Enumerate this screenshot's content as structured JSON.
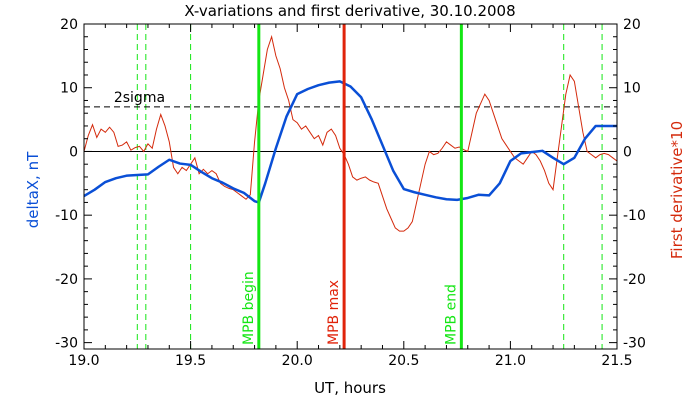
{
  "chart_data": {
    "type": "line",
    "title": "X-variations and first derivative, 30.10.2008",
    "xlabel": "UT, hours",
    "ylabel": "deltaX, nT",
    "ylabel_right": "First derivative*10",
    "xlim": [
      19.0,
      21.5
    ],
    "ylim": [
      -31,
      20
    ],
    "grid": false,
    "colors": {
      "deltaX": "#0a4fd6",
      "derivative": "#d42a0c",
      "green_marker": "#14e614",
      "red_marker": "#e0230a",
      "dashed_green": "#14e614",
      "sigma_line": "#000000"
    },
    "x_ticks": [
      {
        "value": 19.0,
        "label": "19.0"
      },
      {
        "value": 19.5,
        "label": "19.5"
      },
      {
        "value": 20.0,
        "label": "20.0"
      },
      {
        "value": 20.5,
        "label": "20.5"
      },
      {
        "value": 21.0,
        "label": "21.0"
      },
      {
        "value": 21.5,
        "label": "21.5"
      }
    ],
    "y_ticks": [
      {
        "value": 20,
        "label": "20"
      },
      {
        "value": 10,
        "label": "10"
      },
      {
        "value": 0,
        "label": "0"
      },
      {
        "value": -10,
        "label": "-10"
      },
      {
        "value": -20,
        "label": "-20"
      },
      {
        "value": -30,
        "label": "-30"
      }
    ],
    "zero_line": 0,
    "sigma": {
      "value": 7,
      "label": "2sigma"
    },
    "markers": [
      {
        "x": 19.82,
        "label": "MPB begin",
        "kind": "green"
      },
      {
        "x": 20.22,
        "label": "MPB max",
        "kind": "red"
      },
      {
        "x": 20.77,
        "label": "MPB end",
        "kind": "green"
      }
    ],
    "dashed_lines_x": [
      19.25,
      19.29,
      19.5,
      21.25,
      21.43
    ],
    "series": [
      {
        "key": "deltaX",
        "name": "deltaX, nT",
        "x": [
          19.0,
          19.05,
          19.1,
          19.15,
          19.2,
          19.25,
          19.3,
          19.35,
          19.4,
          19.45,
          19.5,
          19.55,
          19.6,
          19.65,
          19.7,
          19.75,
          19.8,
          19.82,
          19.85,
          19.9,
          19.95,
          20.0,
          20.05,
          20.1,
          20.15,
          20.2,
          20.25,
          20.3,
          20.35,
          20.4,
          20.45,
          20.5,
          20.55,
          20.6,
          20.65,
          20.7,
          20.75,
          20.8,
          20.85,
          20.9,
          20.95,
          21.0,
          21.05,
          21.1,
          21.15,
          21.2,
          21.25,
          21.3,
          21.35,
          21.4,
          21.45,
          21.5
        ],
        "y": [
          -7,
          -6,
          -4.8,
          -4.2,
          -3.8,
          -3.7,
          -3.6,
          -2.4,
          -1.3,
          -1.9,
          -2.1,
          -3.2,
          -4.2,
          -4.9,
          -5.8,
          -6.5,
          -7.8,
          -8.0,
          -5.0,
          0.5,
          5.5,
          9.0,
          9.8,
          10.4,
          10.8,
          11.0,
          10.2,
          8.5,
          5.0,
          1.0,
          -3.0,
          -5.9,
          -6.4,
          -6.8,
          -7.2,
          -7.5,
          -7.6,
          -7.3,
          -6.8,
          -6.9,
          -5.0,
          -1.5,
          -0.3,
          -0.1,
          0.1,
          -1.0,
          -2.0,
          -1.0,
          2.0,
          4.0,
          4.0,
          4.0
        ]
      },
      {
        "key": "derivative",
        "name": "First derivative*10",
        "x": [
          19.0,
          19.02,
          19.04,
          19.06,
          19.08,
          19.1,
          19.12,
          19.14,
          19.16,
          19.18,
          19.2,
          19.22,
          19.24,
          19.26,
          19.28,
          19.3,
          19.32,
          19.34,
          19.36,
          19.38,
          19.4,
          19.42,
          19.44,
          19.46,
          19.48,
          19.5,
          19.52,
          19.54,
          19.56,
          19.58,
          19.6,
          19.62,
          19.64,
          19.66,
          19.68,
          19.7,
          19.72,
          19.74,
          19.76,
          19.78,
          19.8,
          19.82,
          19.84,
          19.86,
          19.88,
          19.9,
          19.92,
          19.94,
          19.96,
          19.98,
          20.0,
          20.02,
          20.04,
          20.06,
          20.08,
          20.1,
          20.12,
          20.14,
          20.16,
          20.18,
          20.2,
          20.22,
          20.24,
          20.26,
          20.28,
          20.3,
          20.32,
          20.34,
          20.36,
          20.38,
          20.4,
          20.42,
          20.44,
          20.46,
          20.48,
          20.5,
          20.52,
          20.54,
          20.56,
          20.58,
          20.6,
          20.62,
          20.64,
          20.66,
          20.68,
          20.7,
          20.72,
          20.74,
          20.76,
          20.78,
          20.8,
          20.82,
          20.84,
          20.86,
          20.88,
          20.9,
          20.92,
          20.94,
          20.96,
          20.98,
          21.0,
          21.02,
          21.04,
          21.06,
          21.08,
          21.1,
          21.12,
          21.14,
          21.16,
          21.18,
          21.2,
          21.22,
          21.24,
          21.26,
          21.28,
          21.3,
          21.32,
          21.34,
          21.36,
          21.38,
          21.4,
          21.42,
          21.44,
          21.46,
          21.48,
          21.5
        ],
        "y": [
          0,
          2.5,
          4.2,
          2.2,
          3.5,
          3.0,
          3.8,
          3.0,
          0.8,
          1.0,
          1.5,
          0.2,
          0.6,
          0.8,
          0.0,
          1.2,
          0.5,
          3.5,
          5.8,
          4.0,
          1.5,
          -2.5,
          -3.5,
          -2.5,
          -3.0,
          -2.0,
          -1.0,
          -3.5,
          -2.8,
          -3.5,
          -3.0,
          -3.5,
          -5.0,
          -5.5,
          -5.8,
          -6.0,
          -6.5,
          -7.0,
          -7.5,
          -6.8,
          1.5,
          8.0,
          12.0,
          16.0,
          18.0,
          15.0,
          13.0,
          10.0,
          8.0,
          5.0,
          4.5,
          3.5,
          4.0,
          3.0,
          2.0,
          2.5,
          1.0,
          3.0,
          3.5,
          2.5,
          0.5,
          -0.5,
          -2.0,
          -4.0,
          -4.5,
          -4.2,
          -4.0,
          -4.5,
          -4.8,
          -5.0,
          -7.0,
          -9.0,
          -10.5,
          -12.0,
          -12.5,
          -12.5,
          -12.0,
          -11.0,
          -8.0,
          -5.0,
          -2.0,
          0.0,
          -0.5,
          -0.3,
          0.5,
          1.5,
          1.0,
          0.5,
          0.7,
          0.3,
          0.0,
          3.0,
          6.0,
          7.5,
          9.0,
          8.0,
          6.0,
          4.0,
          2.0,
          1.0,
          0.0,
          -1.0,
          -1.5,
          -2.0,
          -1.0,
          0.0,
          -0.5,
          -1.5,
          -3.0,
          -5.0,
          -6.0,
          -1.0,
          4.0,
          9.0,
          12.0,
          11.0,
          7.0,
          3.0,
          0.0,
          -0.5,
          -1.0,
          -0.5,
          -0.3,
          -0.5,
          -1.0,
          -1.5
        ]
      }
    ]
  }
}
